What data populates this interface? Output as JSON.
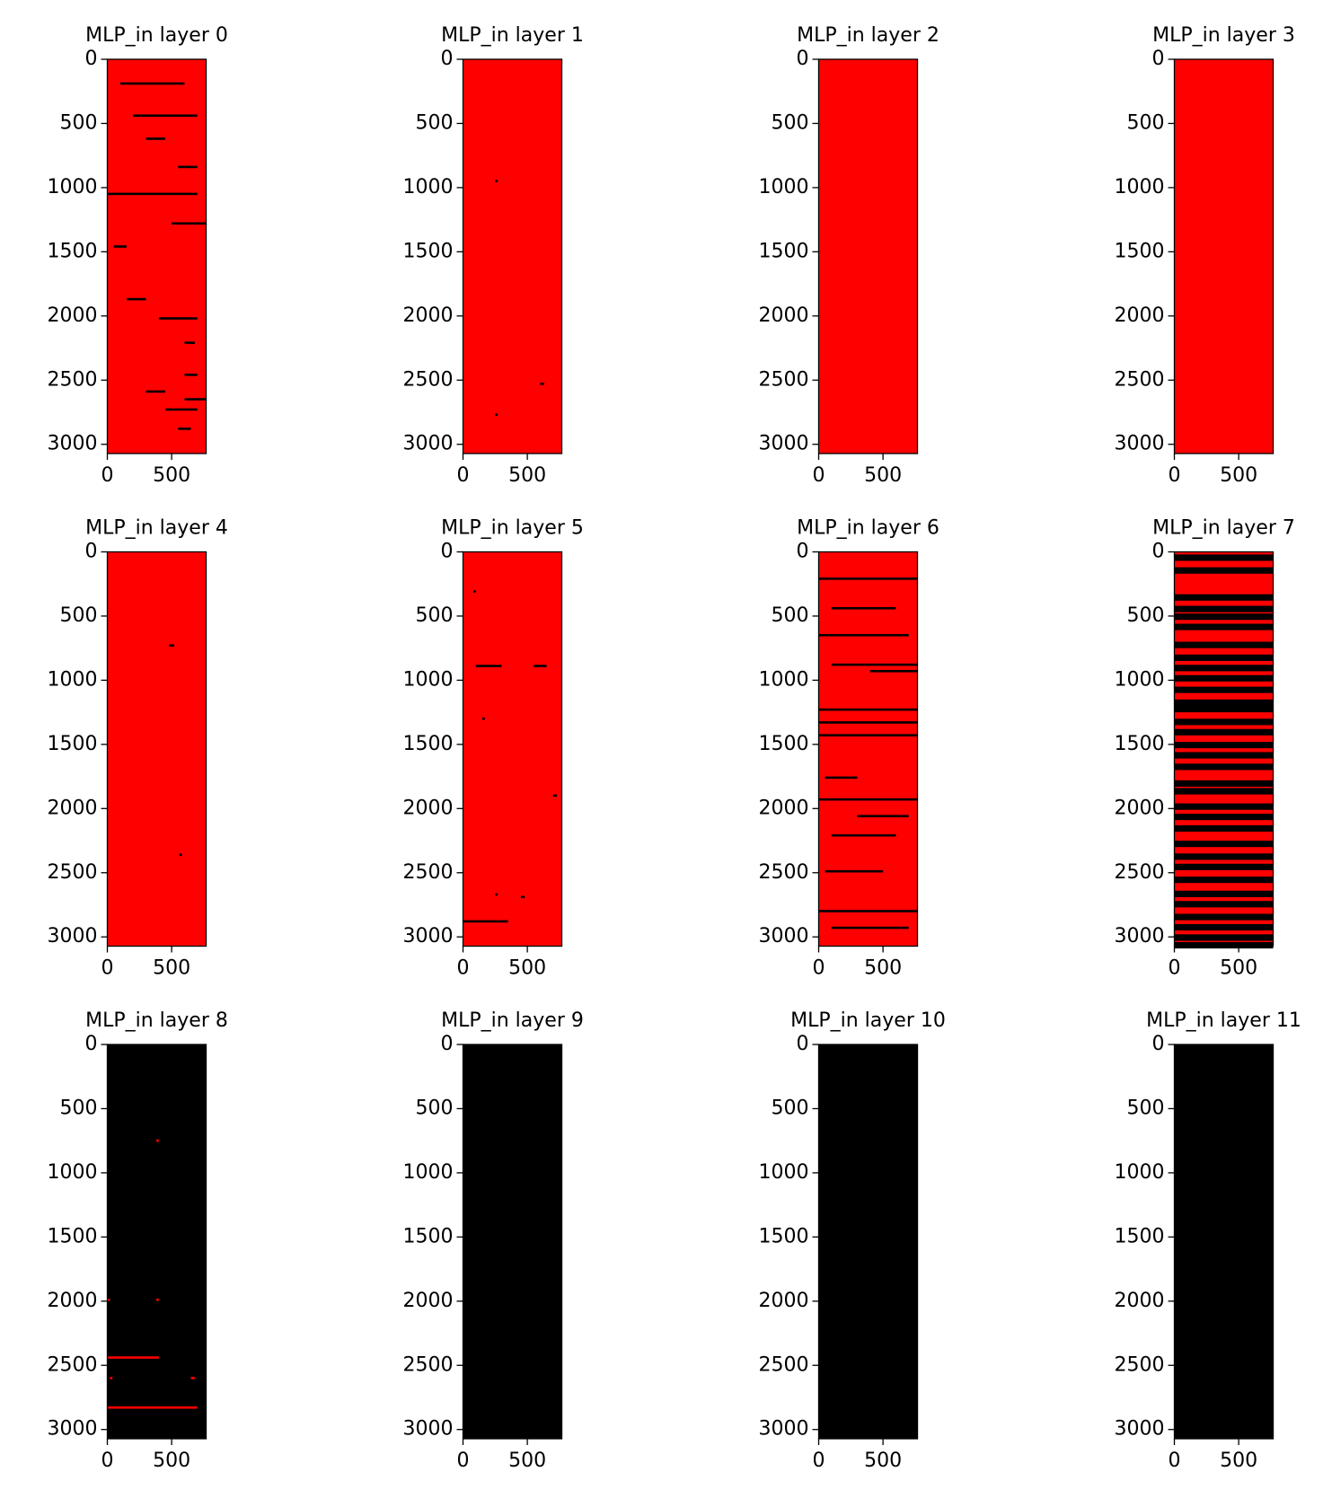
{
  "chart_data": [
    {
      "type": "heatmap",
      "title": "MLP_in layer 0",
      "xlim": [
        0,
        768
      ],
      "ylim": [
        3072,
        0
      ],
      "xticks": [
        0,
        500
      ],
      "yticks": [
        0,
        500,
        1000,
        1500,
        2000,
        2500,
        3000
      ],
      "background": "#ff0000",
      "spot_color": "#000000",
      "spot_height": 18,
      "spots": [
        [
          100,
          600,
          180
        ],
        [
          200,
          700,
          430
        ],
        [
          300,
          450,
          610
        ],
        [
          0,
          700,
          1040
        ],
        [
          550,
          700,
          830
        ],
        [
          500,
          768,
          1270
        ],
        [
          150,
          300,
          1860
        ],
        [
          400,
          700,
          2010
        ],
        [
          600,
          680,
          2200
        ],
        [
          600,
          768,
          2640
        ],
        [
          300,
          450,
          2580
        ],
        [
          450,
          700,
          2720
        ],
        [
          550,
          650,
          2870
        ],
        [
          50,
          150,
          1450
        ],
        [
          600,
          700,
          2450
        ]
      ]
    },
    {
      "type": "heatmap",
      "title": "MLP_in layer 1",
      "xlim": [
        0,
        768
      ],
      "ylim": [
        3072,
        0
      ],
      "xticks": [
        0,
        500
      ],
      "yticks": [
        0,
        500,
        1000,
        1500,
        2000,
        2500,
        3000
      ],
      "background": "#ff0000",
      "spot_color": "#000000",
      "spot_height": 18,
      "spots": [
        [
          250,
          270,
          940
        ],
        [
          600,
          630,
          2520
        ],
        [
          250,
          270,
          2760
        ]
      ]
    },
    {
      "type": "heatmap",
      "title": "MLP_in layer 2",
      "xlim": [
        0,
        768
      ],
      "ylim": [
        3072,
        0
      ],
      "xticks": [
        0,
        500
      ],
      "yticks": [
        0,
        500,
        1000,
        1500,
        2000,
        2500,
        3000
      ],
      "background": "#ff0000"
    },
    {
      "type": "heatmap",
      "title": "MLP_in layer 3",
      "xlim": [
        0,
        768
      ],
      "ylim": [
        3072,
        0
      ],
      "xticks": [
        0,
        500
      ],
      "yticks": [
        0,
        500,
        1000,
        1500,
        2000,
        2500,
        3000
      ],
      "background": "#ff0000"
    },
    {
      "type": "heatmap",
      "title": "MLP_in layer 4",
      "xlim": [
        0,
        768
      ],
      "ylim": [
        3072,
        0
      ],
      "xticks": [
        0,
        500
      ],
      "yticks": [
        0,
        500,
        1000,
        1500,
        2000,
        2500,
        3000
      ],
      "background": "#ff0000",
      "spot_color": "#000000",
      "spot_height": 18,
      "spots": [
        [
          480,
          520,
          720
        ],
        [
          560,
          580,
          2350
        ]
      ]
    },
    {
      "type": "heatmap",
      "title": "MLP_in layer 5",
      "xlim": [
        0,
        768
      ],
      "ylim": [
        3072,
        0
      ],
      "xticks": [
        0,
        500
      ],
      "yticks": [
        0,
        500,
        1000,
        1500,
        2000,
        2500,
        3000
      ],
      "background": "#ff0000",
      "spot_color": "#000000",
      "spot_height": 18,
      "spots": [
        [
          100,
          300,
          880
        ],
        [
          550,
          650,
          880
        ],
        [
          150,
          170,
          1290
        ],
        [
          700,
          730,
          1890
        ],
        [
          250,
          270,
          2660
        ],
        [
          0,
          350,
          2870
        ],
        [
          450,
          480,
          2680
        ],
        [
          80,
          100,
          300
        ]
      ]
    },
    {
      "type": "heatmap",
      "title": "MLP_in layer 6",
      "xlim": [
        0,
        768
      ],
      "ylim": [
        3072,
        0
      ],
      "xticks": [
        0,
        500
      ],
      "yticks": [
        0,
        500,
        1000,
        1500,
        2000,
        2500,
        3000
      ],
      "background": "#ff0000",
      "spot_color": "#000000",
      "spot_height": 18,
      "spots": [
        [
          0,
          768,
          200
        ],
        [
          100,
          600,
          430
        ],
        [
          0,
          700,
          640
        ],
        [
          100,
          768,
          870
        ],
        [
          400,
          768,
          920
        ],
        [
          0,
          768,
          1220
        ],
        [
          0,
          768,
          1320
        ],
        [
          0,
          768,
          1420
        ],
        [
          0,
          768,
          1920
        ],
        [
          100,
          600,
          2200
        ],
        [
          50,
          500,
          2480
        ],
        [
          0,
          768,
          2790
        ],
        [
          100,
          700,
          2920
        ],
        [
          50,
          300,
          1750
        ],
        [
          300,
          700,
          2050
        ]
      ]
    },
    {
      "type": "heatmap",
      "title": "MLP_in layer 7",
      "xlim": [
        0,
        768
      ],
      "ylim": [
        3072,
        0
      ],
      "xticks": [
        0,
        500
      ],
      "yticks": [
        0,
        500,
        1000,
        1500,
        2000,
        2500,
        3000
      ],
      "background": "#ff0000",
      "spot_color": "#000000",
      "spot_height": 50,
      "spots": [
        [
          0,
          768,
          20
        ],
        [
          0,
          768,
          120
        ],
        [
          0,
          768,
          330
        ],
        [
          0,
          768,
          420
        ],
        [
          0,
          768,
          480
        ],
        [
          0,
          768,
          560
        ],
        [
          0,
          768,
          700
        ],
        [
          0,
          768,
          800
        ],
        [
          0,
          768,
          880
        ],
        [
          0,
          768,
          960
        ],
        [
          0,
          768,
          1050
        ],
        [
          0,
          768,
          1150
        ],
        [
          0,
          768,
          1200
        ],
        [
          0,
          768,
          1300
        ],
        [
          0,
          768,
          1380
        ],
        [
          0,
          768,
          1480
        ],
        [
          0,
          768,
          1560
        ],
        [
          0,
          768,
          1650
        ],
        [
          0,
          768,
          1780
        ],
        [
          0,
          768,
          1840
        ],
        [
          0,
          768,
          1960
        ],
        [
          0,
          768,
          2040
        ],
        [
          0,
          768,
          2130
        ],
        [
          0,
          768,
          2250
        ],
        [
          0,
          768,
          2350
        ],
        [
          0,
          768,
          2430
        ],
        [
          0,
          768,
          2530
        ],
        [
          0,
          768,
          2640
        ],
        [
          0,
          768,
          2720
        ],
        [
          0,
          768,
          2820
        ],
        [
          0,
          768,
          2900
        ],
        [
          0,
          768,
          2980
        ],
        [
          0,
          768,
          3040
        ]
      ]
    },
    {
      "type": "heatmap",
      "title": "MLP_in layer 8",
      "xlim": [
        0,
        768
      ],
      "ylim": [
        3072,
        0
      ],
      "xticks": [
        0,
        500
      ],
      "yticks": [
        0,
        500,
        1000,
        1500,
        2000,
        2500,
        3000
      ],
      "background": "#000000",
      "spot_color": "#ff0000",
      "spot_height": 18,
      "spots": [
        [
          380,
          400,
          740
        ],
        [
          0,
          20,
          1980
        ],
        [
          380,
          400,
          1980
        ],
        [
          0,
          300,
          2430
        ],
        [
          300,
          400,
          2430
        ],
        [
          0,
          700,
          2820
        ],
        [
          650,
          680,
          2590
        ],
        [
          20,
          40,
          2590
        ]
      ]
    },
    {
      "type": "heatmap",
      "title": "MLP_in layer 9",
      "xlim": [
        0,
        768
      ],
      "ylim": [
        3072,
        0
      ],
      "xticks": [
        0,
        500
      ],
      "yticks": [
        0,
        500,
        1000,
        1500,
        2000,
        2500,
        3000
      ],
      "background": "#000000"
    },
    {
      "type": "heatmap",
      "title": "MLP_in layer 10",
      "xlim": [
        0,
        768
      ],
      "ylim": [
        3072,
        0
      ],
      "xticks": [
        0,
        500
      ],
      "yticks": [
        0,
        500,
        1000,
        1500,
        2000,
        2500,
        3000
      ],
      "background": "#000000"
    },
    {
      "type": "heatmap",
      "title": "MLP_in layer 11",
      "xlim": [
        0,
        768
      ],
      "ylim": [
        3072,
        0
      ],
      "xticks": [
        0,
        500
      ],
      "yticks": [
        0,
        500,
        1000,
        1500,
        2000,
        2500,
        3000
      ],
      "background": "#000000"
    }
  ]
}
